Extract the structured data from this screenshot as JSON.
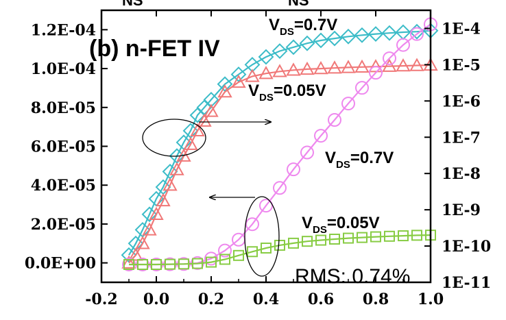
{
  "chart_data": {
    "type": "line",
    "title": "(b) n-FET IV",
    "xlabel": "",
    "ylabel_left": "",
    "ylabel_right": "",
    "x_ticks": [
      "-0.2",
      "0.0",
      "0.2",
      "0.4",
      "0.6",
      "0.8",
      "1.0"
    ],
    "y_left_ticks": [
      "0.0E+00",
      "2.0E-05",
      "4.0E-05",
      "6.0E-05",
      "8.0E-05",
      "1.0E-04",
      "1.2E-04"
    ],
    "y_right_ticks": [
      "1E-11",
      "1E-10",
      "1E-9",
      "1E-8",
      "1E-7",
      "1E-6",
      "1E-5",
      "1E-4"
    ],
    "top_labels": [
      "NS",
      "NS"
    ],
    "xlim": [
      -0.2,
      1.0
    ],
    "ylim_left": [
      -1e-05,
      0.00013
    ],
    "ylim_right_log10": [
      -11,
      -3.5
    ],
    "grid": false,
    "rms_text": "RMS: 0.74%",
    "colors": {
      "cyan": "#3cbcc8",
      "red": "#f07878",
      "magenta": "#ee88ee",
      "green": "#88cc44",
      "axis": "#000000"
    },
    "series": [
      {
        "axis": "left",
        "marker": "diamond",
        "color": "#3cbcc8",
        "x": [
          -0.1,
          -0.075,
          -0.05,
          -0.025,
          0.0,
          0.025,
          0.05,
          0.075,
          0.1,
          0.125,
          0.15,
          0.175,
          0.2,
          0.25,
          0.3,
          0.35,
          0.4,
          0.45,
          0.5,
          0.55,
          0.6,
          0.65,
          0.7,
          0.75,
          0.8,
          0.85,
          0.9,
          0.95,
          1.0
        ],
        "y": [
          4e-06,
          1e-05,
          1.7e-05,
          2.5e-05,
          3.3e-05,
          3.9e-05,
          4.7e-05,
          5.5e-05,
          6.2e-05,
          6.8e-05,
          7.6e-05,
          8e-05,
          8.4e-05,
          9.2e-05,
          9.7e-05,
          0.000102,
          0.000106,
          0.000109,
          0.000111,
          0.000113,
          0.0001145,
          0.0001155,
          0.0001165,
          0.0001172,
          0.0001178,
          0.0001183,
          0.0001187,
          0.000119,
          0.0001195
        ]
      },
      {
        "axis": "left",
        "marker": "triangle",
        "color": "#f07878",
        "x": [
          -0.1,
          -0.075,
          -0.05,
          -0.025,
          0.0,
          0.025,
          0.05,
          0.075,
          0.1,
          0.125,
          0.15,
          0.175,
          0.2,
          0.25,
          0.3,
          0.35,
          0.4,
          0.45,
          0.5,
          0.55,
          0.6,
          0.65,
          0.7,
          0.75,
          0.8,
          0.85,
          0.9,
          0.95,
          1.0
        ],
        "y": [
          0.0,
          4e-06,
          1e-05,
          1.7e-05,
          2.5e-05,
          3.2e-05,
          4e-05,
          4.8e-05,
          5.5e-05,
          6.1e-05,
          6.8e-05,
          7.3e-05,
          7.8e-05,
          8.8e-05,
          9.3e-05,
          9.6e-05,
          9.75e-05,
          9.85e-05,
          9.92e-05,
          9.97e-05,
          0.0001,
          0.0001003,
          0.0001006,
          0.0001008,
          0.000101,
          0.0001012,
          0.0001014,
          0.0001016,
          0.0001018
        ]
      },
      {
        "axis": "right",
        "marker": "circle",
        "color": "#ee88ee",
        "x": [
          -0.1,
          -0.05,
          0.0,
          0.05,
          0.1,
          0.15,
          0.2,
          0.25,
          0.3,
          0.35,
          0.4,
          0.45,
          0.5,
          0.55,
          0.6,
          0.65,
          0.7,
          0.75,
          0.8,
          0.85,
          0.9,
          0.95,
          1.0
        ],
        "y": [
          3.1e-11,
          3.1e-11,
          3.1e-11,
          3.15e-11,
          3.2e-11,
          3.4e-11,
          4.5e-11,
          7.5e-11,
          1.5e-10,
          4e-10,
          1.3e-09,
          4e-09,
          1.3e-08,
          3.8e-08,
          1.1e-07,
          3e-07,
          8.5e-07,
          2.3e-06,
          6e-06,
          1.5e-05,
          3.5e-05,
          7e-05,
          0.00013
        ]
      },
      {
        "axis": "right",
        "marker": "square",
        "color": "#88cc44",
        "x": [
          -0.1,
          -0.05,
          0.0,
          0.05,
          0.1,
          0.15,
          0.2,
          0.25,
          0.3,
          0.35,
          0.4,
          0.45,
          0.5,
          0.55,
          0.6,
          0.65,
          0.7,
          0.75,
          0.8,
          0.85,
          0.9,
          0.95,
          1.0
        ],
        "y": [
          3.1e-11,
          3.1e-11,
          3.1e-11,
          3.15e-11,
          3.2e-11,
          3.3e-11,
          3.6e-11,
          4.3e-11,
          5.5e-11,
          7e-11,
          8.8e-11,
          1.05e-10,
          1.2e-10,
          1.35e-10,
          1.45e-10,
          1.55e-10,
          1.65e-10,
          1.72e-10,
          1.8e-10,
          1.86e-10,
          1.92e-10,
          1.98e-10,
          2e-10
        ]
      }
    ],
    "annotations": [
      {
        "main": "V",
        "sub": "DS",
        "value": "=0.7V"
      },
      {
        "main": "V",
        "sub": "DS",
        "value": "=0.05V"
      },
      {
        "main": "V",
        "sub": "DS",
        "value": "=0.7V"
      },
      {
        "main": "V",
        "sub": "DS",
        "value": "=0.05V"
      }
    ]
  }
}
